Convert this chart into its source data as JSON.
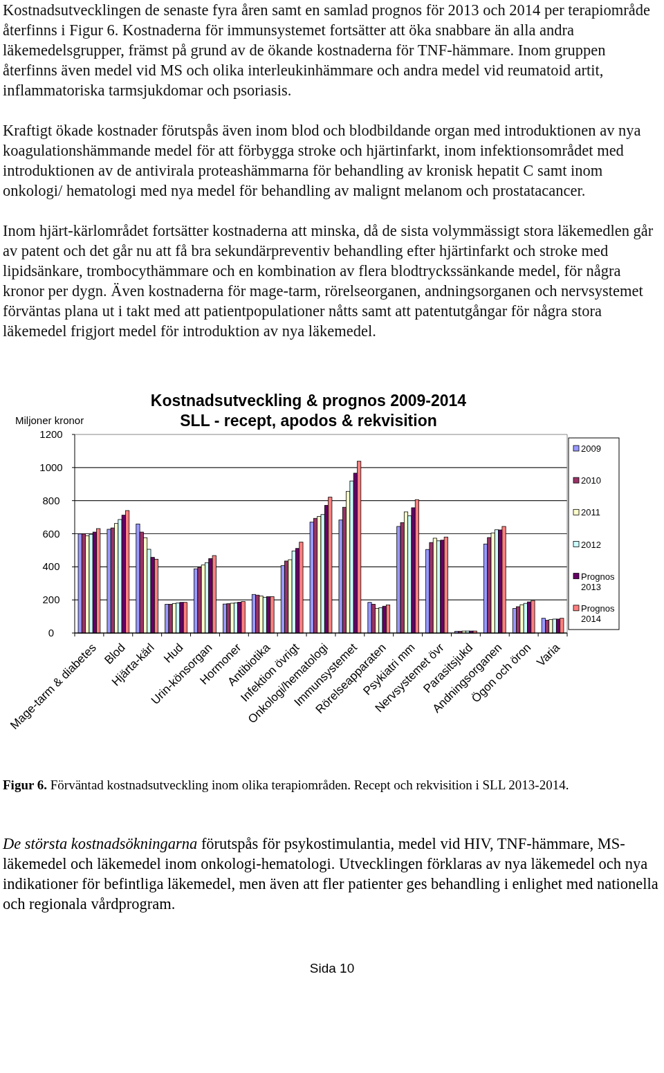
{
  "chart_data": {
    "type": "bar",
    "title": "Kostnadsutveckling & prognos 2009-2014",
    "subtitle": "SLL - recept, apodos & rekvisition",
    "ylabel": "Miljoner kronor",
    "categories": [
      "Mage-tarm & diabetes",
      "Blod",
      "Hjärta-kärl",
      "Hud",
      "Urin-könsorgan",
      "Hormoner",
      "Antibiotika",
      "Infektion övrigt",
      "Onkologi/hematologi",
      "Immunsystemet",
      "Rörelseapparaten",
      "Psykiatri mm",
      "Nervsystemet övr",
      "Parasitsjukd",
      "Andningsorganen",
      "Ögon och öron",
      "Varia"
    ],
    "series": [
      {
        "name": "2009",
        "color": "#9999ff",
        "values": [
          599,
          627,
          659,
          174,
          388,
          175,
          233,
          407,
          670,
          683,
          185,
          644,
          505,
          10,
          538,
          148,
          89
        ]
      },
      {
        "name": "2010",
        "color": "#993366",
        "values": [
          599,
          635,
          610,
          174,
          397,
          177,
          229,
          435,
          693,
          760,
          174,
          667,
          547,
          10,
          577,
          159,
          77
        ]
      },
      {
        "name": "2011",
        "color": "#ffffcc",
        "values": [
          588,
          662,
          576,
          178,
          411,
          180,
          224,
          443,
          705,
          856,
          149,
          732,
          573,
          12,
          605,
          171,
          81
        ]
      },
      {
        "name": "2012",
        "color": "#ccffff",
        "values": [
          597,
          686,
          506,
          181,
          425,
          182,
          216,
          496,
          716,
          919,
          153,
          708,
          557,
          12,
          624,
          179,
          84
        ]
      },
      {
        "name": "Prognos 2013",
        "color": "#660066",
        "values": [
          610,
          712,
          457,
          185,
          450,
          186,
          220,
          511,
          771,
          966,
          162,
          757,
          561,
          12,
          623,
          188,
          84
        ]
      },
      {
        "name": "Prognos 2014",
        "color": "#ff8080",
        "values": [
          631,
          740,
          446,
          185,
          468,
          190,
          220,
          549,
          821,
          1038,
          170,
          806,
          580,
          12,
          644,
          196,
          89
        ]
      }
    ],
    "ylim": [
      0,
      1200
    ],
    "yticks": [
      0,
      200,
      400,
      600,
      800,
      1000,
      1200
    ],
    "grid": "y",
    "legend": "right",
    "annotations": [
      "Kostnadsutvecklingen de senaste fyra åren samt en samlad prognos för 2013 och 2014 per terapiområde återfinns i Figur 6. Kostnaderna för immunsystemet fortsätter att öka snabbare än alla andra läkemedelsgrupper, främst på grund av de ökande kostnaderna för TNF-hämmare. Inom gruppen återfinns även medel vid MS och olika interleukinhämmare och andra medel vid reumatoid artit, inflammatoriska tarmsjukdomar och psoriasis.",
      "Kraftigt ökade kostnader förutspås även inom blod och blodbildande organ med introduktionen av nya koagulationshämmande medel för att förbygga stroke och hjärtinfarkt, inom infektionsområdet med introduktionen av de antivirala proteashämmarna för behandling av kronisk hepatit C samt inom onkologi/ hematologi med nya medel för behandling av malignt melanom och prostatacancer.",
      "Inom hjärt-kärlområdet fortsätter kostnaderna att minska, då de sista volymmässigt stora läkemedlen går av patent och det går nu att få bra sekundärpreventiv behandling efter hjärtinfarkt och stroke med lipidsänkare, trombocythämmare och en kombination av flera blodtryckssänkande medel, för några kronor per dygn. Även kostnaderna för mage-tarm, rörelseorganen, andningsorganen och nervsystemet förväntas plana ut i takt med att patientpopulationer nåtts samt att patentutgångar för några stora läkemedel frigjort medel för introduktion av nya läkemedel.",
      "Figur 6. Förväntad kostnadsutveckling inom olika terapiområden. Recept och rekvisition i SLL 2013-2014.",
      "De största kostnadsökningarna förutspås för psykostimulantia, medel vid HIV, TNF-hämmare, MS-läkemedel och läkemedel inom onkologi-hematologi. Utvecklingen förklaras av nya läkemedel och nya indikationer för befintliga läkemedel, men även att fler patienter ges behandling i enlighet med nationella och regionala vårdprogram.",
      "Sida 10"
    ]
  }
}
